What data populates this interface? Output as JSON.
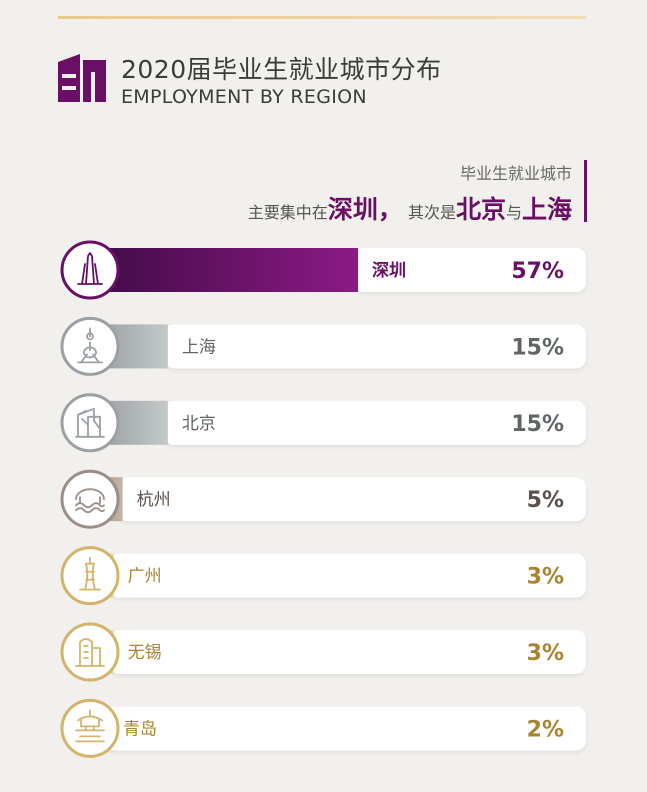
{
  "header": {
    "title": "2020届毕业生就业城市分布",
    "subtitle": "EMPLOYMENT BY REGION"
  },
  "summary": {
    "line1": "毕业生就业城市",
    "prefix": "主要集中在",
    "city1": "深圳",
    "sep": "，",
    "mid": "其次是",
    "city2": "北京",
    "conj": "与",
    "city3": "上海"
  },
  "colors": {
    "purple": "#6a0f66",
    "gray": "#9aa0a3",
    "taupe": "#9b8d87",
    "gold": "#d4b46c"
  },
  "chart_data": {
    "type": "bar",
    "categories": [
      "深圳",
      "上海",
      "北京",
      "杭州",
      "广州",
      "无锡",
      "青岛"
    ],
    "values": [
      57,
      15,
      15,
      5,
      3,
      3,
      2
    ],
    "value_labels": [
      "57%",
      "15%",
      "15%",
      "5%",
      "3%",
      "3%",
      "2%"
    ],
    "icons": [
      "shenzhen-tower-icon",
      "oriental-pearl-tower-icon",
      "cctv-building-icon",
      "west-lake-bridge-icon",
      "canton-tower-icon",
      "wuxi-building-icon",
      "qingdao-pavilion-icon"
    ],
    "tones": [
      "purple",
      "gray",
      "gray",
      "taupe",
      "gold",
      "gold",
      "gold"
    ],
    "unit": "%"
  }
}
